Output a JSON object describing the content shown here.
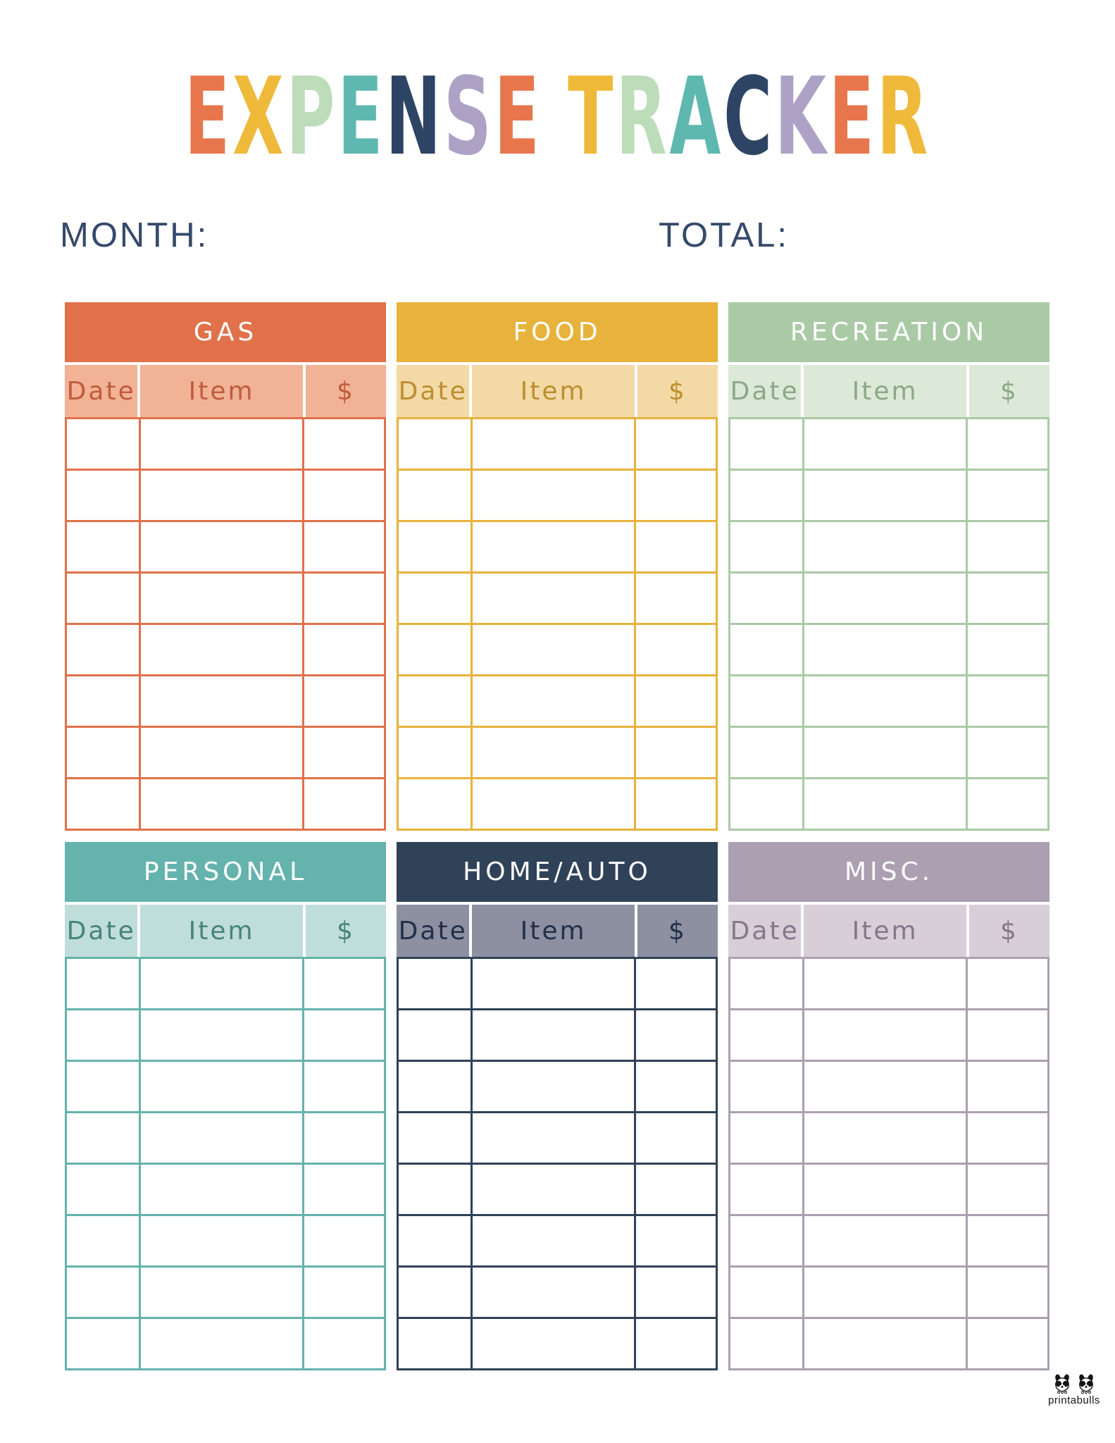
{
  "title": {
    "text": "EXPENSE TRACKER",
    "letters": [
      {
        "char": "E",
        "color": "#E8764D"
      },
      {
        "char": "X",
        "color": "#EFB93A"
      },
      {
        "char": "P",
        "color": "#BDDCB9"
      },
      {
        "char": "E",
        "color": "#5FB8B0"
      },
      {
        "char": "N",
        "color": "#2E4464"
      },
      {
        "char": "S",
        "color": "#ADA2C6"
      },
      {
        "char": "E",
        "color": "#E8764D"
      },
      {
        "char": " ",
        "color": ""
      },
      {
        "char": "T",
        "color": "#EFB93A"
      },
      {
        "char": "R",
        "color": "#BDDCB9"
      },
      {
        "char": "A",
        "color": "#5FB8B0"
      },
      {
        "char": "C",
        "color": "#2E4464"
      },
      {
        "char": "K",
        "color": "#ADA2C6"
      },
      {
        "char": "E",
        "color": "#E8764D"
      },
      {
        "char": "R",
        "color": "#EFB93A"
      }
    ]
  },
  "fields": {
    "month_label": "MONTH:",
    "total_label": "TOTAL:",
    "label_color": "#36496B",
    "month_value": "",
    "total_value": ""
  },
  "tables": [
    {
      "id": "gas",
      "title": "GAS",
      "columns": [
        "Date",
        "Item",
        "$"
      ],
      "rows": 8,
      "colors": {
        "header": "#E0714A",
        "header_text": "#FFFFFF",
        "subheader": "#F2B295",
        "label_text": "#C05B3C",
        "border": "#E0714A"
      }
    },
    {
      "id": "food",
      "title": "FOOD",
      "columns": [
        "Date",
        "Item",
        "$"
      ],
      "rows": 8,
      "colors": {
        "header": "#E7B33C",
        "header_text": "#FFFFFF",
        "subheader": "#F3D9A6",
        "label_text": "#BD8E2E",
        "border": "#E7B33C"
      }
    },
    {
      "id": "recreation",
      "title": "RECREATION",
      "columns": [
        "Date",
        "Item",
        "$"
      ],
      "rows": 8,
      "colors": {
        "header": "#AACAA6",
        "header_text": "#FFFFFF",
        "subheader": "#DCE8D8",
        "label_text": "#8BA887",
        "border": "#AACAA6"
      }
    },
    {
      "id": "personal",
      "title": "PERSONAL",
      "columns": [
        "Date",
        "Item",
        "$"
      ],
      "rows": 8,
      "colors": {
        "header": "#64B3AC",
        "header_text": "#FFFFFF",
        "subheader": "#BFDDD9",
        "label_text": "#47837D",
        "border": "#64B3AC"
      }
    },
    {
      "id": "home-auto",
      "title": "HOME/AUTO",
      "columns": [
        "Date",
        "Item",
        "$"
      ],
      "rows": 8,
      "colors": {
        "header": "#2F4258",
        "header_text": "#FFFFFF",
        "subheader": "#8C90A1",
        "label_text": "#232F48",
        "border": "#2F4258"
      }
    },
    {
      "id": "misc",
      "title": "MISC.",
      "columns": [
        "Date",
        "Item",
        "$"
      ],
      "rows": 8,
      "colors": {
        "header": "#AC9FB1",
        "header_text": "#FFFFFF",
        "subheader": "#D7CED8",
        "label_text": "#85768A",
        "border": "#AC9FB1"
      }
    }
  ],
  "footer": {
    "brand": "printabulls",
    "logo": "two-bulldog-faces"
  }
}
